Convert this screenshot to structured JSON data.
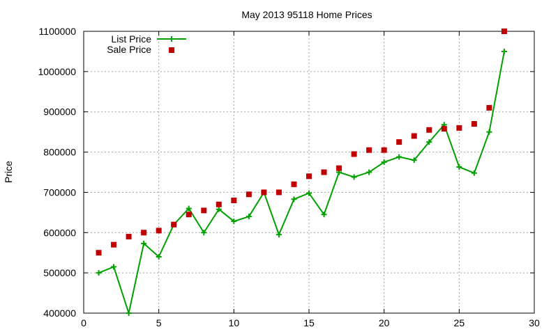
{
  "chart_data": {
    "type": "line",
    "title": "May 2013 95118 Home Prices",
    "xlabel": "",
    "ylabel": "Price",
    "xlim": [
      0,
      30
    ],
    "ylim": [
      400000,
      1100000
    ],
    "x_ticks": [
      0,
      5,
      10,
      15,
      20,
      25,
      30
    ],
    "y_ticks": [
      400000,
      500000,
      600000,
      700000,
      800000,
      900000,
      1000000,
      1100000
    ],
    "grid": true,
    "legend_position": "top-left",
    "series": [
      {
        "name": "List Price",
        "style": "line-with-plus-markers",
        "color": "#00a000",
        "points": [
          [
            1,
            500000
          ],
          [
            2,
            515000
          ],
          [
            3,
            400000
          ],
          [
            4,
            573000
          ],
          [
            5,
            540000
          ],
          [
            6,
            620000
          ],
          [
            7,
            660000
          ],
          [
            8,
            600000
          ],
          [
            9,
            658000
          ],
          [
            10,
            628000
          ],
          [
            11,
            640000
          ],
          [
            12,
            700000
          ],
          [
            13,
            595000
          ],
          [
            14,
            683000
          ],
          [
            15,
            698000
          ],
          [
            16,
            645000
          ],
          [
            17,
            750000
          ],
          [
            18,
            738000
          ],
          [
            19,
            750000
          ],
          [
            20,
            775000
          ],
          [
            21,
            788000
          ],
          [
            22,
            780000
          ],
          [
            23,
            825000
          ],
          [
            24,
            868000
          ],
          [
            25,
            763000
          ],
          [
            26,
            748000
          ],
          [
            27,
            850000
          ],
          [
            28,
            1050000
          ]
        ]
      },
      {
        "name": "Sale Price",
        "style": "square-markers",
        "color": "#c00000",
        "points": [
          [
            1,
            550000
          ],
          [
            2,
            570000
          ],
          [
            3,
            590000
          ],
          [
            4,
            600000
          ],
          [
            5,
            605000
          ],
          [
            6,
            620000
          ],
          [
            7,
            645000
          ],
          [
            8,
            655000
          ],
          [
            9,
            670000
          ],
          [
            10,
            680000
          ],
          [
            11,
            695000
          ],
          [
            12,
            700000
          ],
          [
            13,
            700000
          ],
          [
            14,
            720000
          ],
          [
            15,
            740000
          ],
          [
            16,
            750000
          ],
          [
            17,
            760000
          ],
          [
            18,
            795000
          ],
          [
            19,
            805000
          ],
          [
            20,
            805000
          ],
          [
            21,
            825000
          ],
          [
            22,
            840000
          ],
          [
            23,
            855000
          ],
          [
            24,
            858000
          ],
          [
            25,
            860000
          ],
          [
            26,
            870000
          ],
          [
            27,
            910000
          ],
          [
            28,
            1100000
          ]
        ]
      }
    ]
  }
}
